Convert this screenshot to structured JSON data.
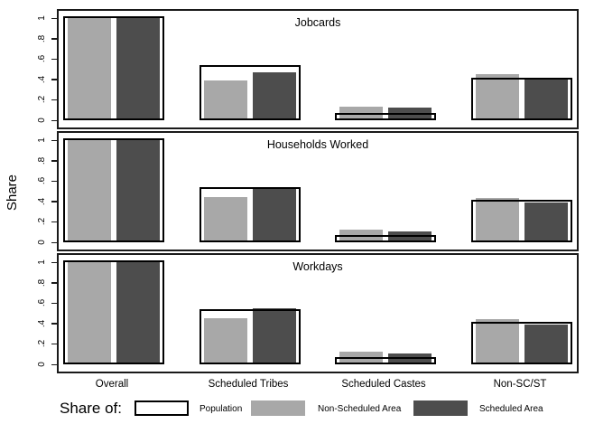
{
  "chart_data": {
    "type": "bar",
    "title": "",
    "ylabel": "Share",
    "xlabel": "",
    "ylim": [
      0,
      1
    ],
    "yticks": [
      0,
      0.2,
      0.4,
      0.6,
      0.8,
      1
    ],
    "ytick_labels": [
      "0",
      ".2",
      ".4",
      ".6",
      ".8",
      "1"
    ],
    "grid": false,
    "legend_position": "bottom",
    "legend_title": "Share of:",
    "legend_items": [
      "Population",
      "Non-Scheduled Area",
      "Scheduled Area"
    ],
    "categories": [
      "Overall",
      "Scheduled Tribes",
      "Scheduled Castes",
      "Non-SC/ST"
    ],
    "panels": [
      {
        "title": "Jobcards",
        "series": [
          {
            "name": "Population",
            "values": [
              1.0,
              0.52,
              0.05,
              0.4
            ]
          },
          {
            "name": "Non-Scheduled Area",
            "values": [
              1.0,
              0.39,
              0.13,
              0.45
            ]
          },
          {
            "name": "Scheduled Area",
            "values": [
              1.0,
              0.47,
              0.12,
              0.41
            ]
          }
        ]
      },
      {
        "title": "Households Worked",
        "series": [
          {
            "name": "Population",
            "values": [
              1.0,
              0.52,
              0.05,
              0.4
            ]
          },
          {
            "name": "Non-Scheduled Area",
            "values": [
              1.0,
              0.44,
              0.12,
              0.43
            ]
          },
          {
            "name": "Scheduled Area",
            "values": [
              1.0,
              0.53,
              0.11,
              0.39
            ]
          }
        ]
      },
      {
        "title": "Workdays",
        "series": [
          {
            "name": "Population",
            "values": [
              1.0,
              0.52,
              0.05,
              0.4
            ]
          },
          {
            "name": "Non-Scheduled Area",
            "values": [
              1.0,
              0.45,
              0.12,
              0.44
            ]
          },
          {
            "name": "Scheduled Area",
            "values": [
              1.0,
              0.55,
              0.11,
              0.39
            ]
          }
        ]
      }
    ],
    "colors": {
      "population_fill": "#ffffff",
      "population_border": "#000000",
      "non_scheduled_area": "#a8a8a8",
      "scheduled_area": "#4d4d4d",
      "frame": "#1a1a1a"
    }
  }
}
